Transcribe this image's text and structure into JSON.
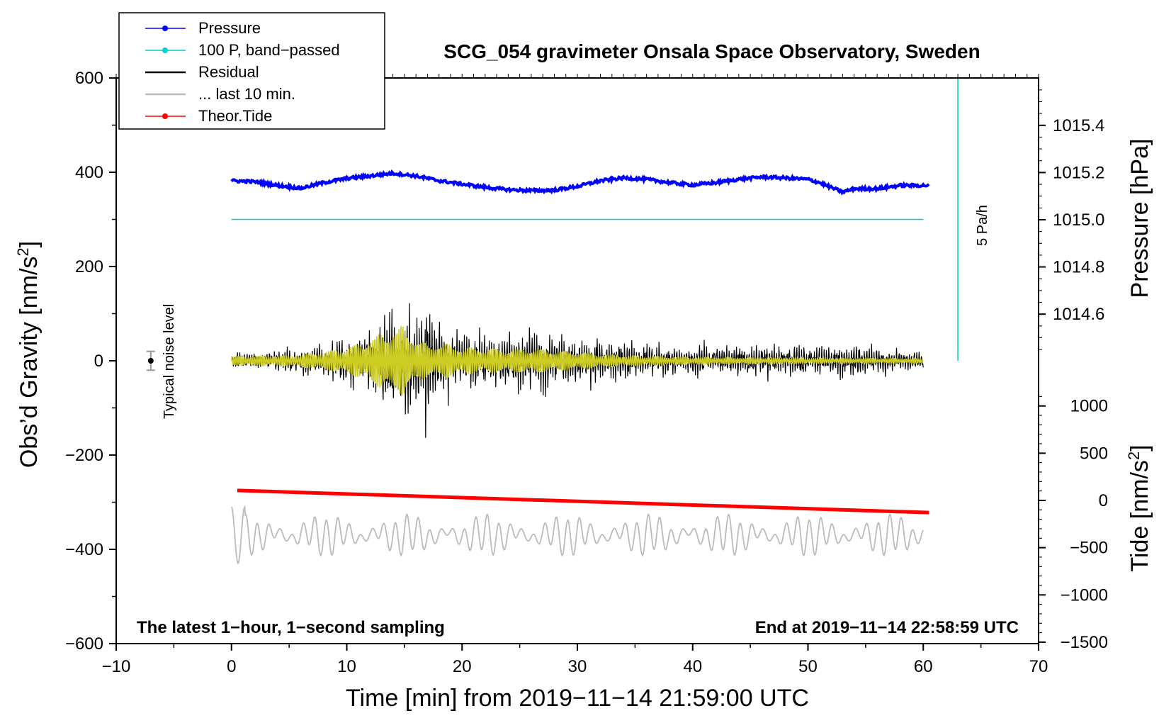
{
  "chart_data": {
    "type": "line",
    "title": "SCG_054 gravimeter Onsala Space Observatory, Sweden",
    "xlabel": "Time [min] from 2019−11−14 21:59:00 UTC",
    "ylabel_left": "Obs’d Gravity [nm/s",
    "ylabel_left_sup": "2",
    "ylabel_left_end": "]",
    "ylabel_right_top": "Pressure [hPa]",
    "ylabel_right_bottom": "Tide [nm/s",
    "ylabel_right_bottom_sup": "2",
    "ylabel_right_bottom_end": "]",
    "xlim": [
      -10,
      70
    ],
    "ylim": [
      -600,
      600
    ],
    "pressure_axis_lim": [
      1014.0,
      1015.6
    ],
    "tide_axis_lim": [
      -1500,
      1500
    ],
    "x_ticks": [
      -10,
      0,
      10,
      20,
      30,
      40,
      50,
      60,
      70
    ],
    "x_tick_labels": [
      "−10",
      "0",
      "10",
      "20",
      "30",
      "40",
      "50",
      "60",
      "70"
    ],
    "y_ticks": [
      -600,
      -400,
      -200,
      0,
      200,
      400,
      600
    ],
    "y_tick_labels": [
      "−600",
      "−400",
      "−200",
      "0",
      "200",
      "400",
      "600"
    ],
    "pressure_ticks": [
      1014.6,
      1014.8,
      1015.0,
      1015.2,
      1015.4
    ],
    "pressure_tick_labels": [
      "1014.6",
      "1014.8",
      "1015.0",
      "1015.2",
      "1015.4"
    ],
    "tide_ticks": [
      -1500,
      -1000,
      -500,
      0,
      500,
      1000
    ],
    "tide_tick_labels": [
      "−1500",
      "−1000",
      "−500",
      "0",
      "500",
      "1000"
    ],
    "legend": [
      {
        "label": "Pressure",
        "color": "#0000ff",
        "marker": true
      },
      {
        "label": "100 P, band−passed",
        "color": "#00cccc",
        "marker": true
      },
      {
        "label": "Residual",
        "color": "#000000",
        "marker": false
      },
      {
        "label": "... last 10 min.",
        "color": "#bbbbbb",
        "marker": false
      },
      {
        "label": "Theor.Tide",
        "color": "#ff0000",
        "marker": true
      }
    ],
    "annotations": {
      "bottom_left": "The latest 1−hour, 1−second sampling",
      "bottom_right": "End at 2019−11−14 22:58:59 UTC",
      "noise": "Typical noise level",
      "rate": "5 Pa/h"
    },
    "noise_bar": {
      "x": -7,
      "y": 0,
      "err": 20
    },
    "band_passed_pressure": {
      "x": [
        0,
        60
      ],
      "y": [
        300,
        300
      ],
      "color": "#00cccc"
    },
    "rate_bar": {
      "x": 63,
      "y": [
        0,
        600
      ],
      "color": "#00cccc"
    },
    "series": [
      {
        "name": "Pressure",
        "color": "#0000ff",
        "x": [
          0,
          2,
          4,
          6,
          8,
          10,
          12,
          14,
          16,
          18,
          20,
          22,
          24,
          26,
          28,
          30,
          32,
          34,
          36,
          38,
          40,
          42,
          44,
          46,
          48,
          50,
          51,
          52,
          53,
          54,
          56,
          58,
          60
        ],
        "y": [
          382,
          380,
          372,
          366,
          378,
          387,
          392,
          398,
          392,
          382,
          375,
          368,
          363,
          361,
          362,
          370,
          382,
          388,
          385,
          378,
          373,
          378,
          385,
          390,
          388,
          385,
          378,
          368,
          358,
          365,
          365,
          372,
          372
        ]
      },
      {
        "name": "Theor.Tide",
        "color": "#ff0000",
        "x": [
          0.5,
          60.5
        ],
        "y": [
          -275,
          -322
        ]
      },
      {
        "name": "Residual",
        "color": "#000000",
        "x": [
          0,
          4,
          8,
          10,
          12,
          13,
          14,
          15,
          16,
          17,
          18,
          20,
          22,
          24,
          26,
          28,
          30,
          32,
          34,
          36,
          40,
          45,
          50,
          55,
          60
        ],
        "amplitude": [
          18,
          28,
          45,
          55,
          75,
          110,
          130,
          150,
          125,
          170,
          95,
          65,
          70,
          65,
          85,
          60,
          60,
          55,
          48,
          42,
          40,
          38,
          40,
          35,
          25
        ]
      },
      {
        "name": "100 P, band−passed (yellow)",
        "color": "#cccc22",
        "x": [
          0,
          5,
          8,
          10,
          11,
          12,
          13,
          14,
          15,
          16,
          17,
          18,
          20,
          22,
          24,
          26,
          28,
          30,
          32,
          34,
          40,
          50,
          60
        ],
        "amplitude": [
          10,
          12,
          20,
          30,
          38,
          50,
          60,
          72,
          75,
          50,
          35,
          40,
          30,
          28,
          25,
          28,
          24,
          20,
          15,
          12,
          8,
          6,
          5
        ]
      },
      {
        "name": "... last 10 min.",
        "color": "#bbbbbb",
        "x_range": [
          0,
          60
        ],
        "center": -370,
        "amplitude": 40
      }
    ]
  }
}
